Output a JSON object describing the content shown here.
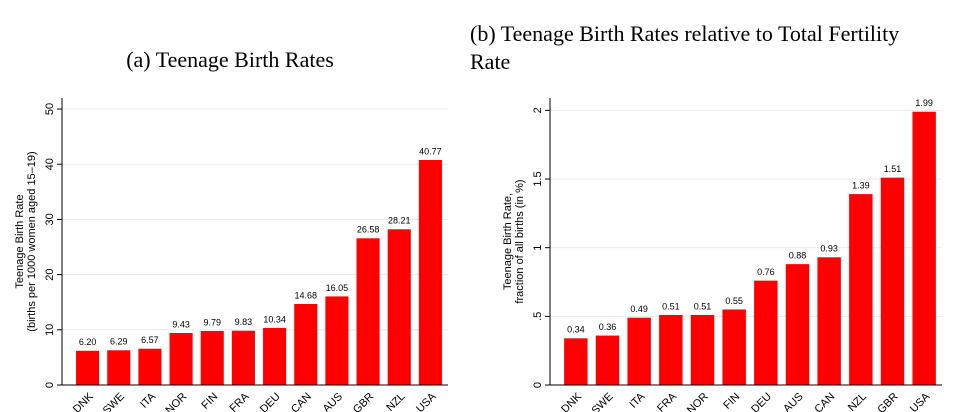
{
  "chart_data": [
    {
      "type": "bar",
      "title": "(a) Teenage Birth Rates",
      "ylabel": [
        "Teenage Birth Rate",
        "(births per 1000 women aged 15–19)"
      ],
      "categories": [
        "DNK",
        "SWE",
        "ITA",
        "NOR",
        "FIN",
        "FRA",
        "DEU",
        "CAN",
        "AUS",
        "GBR",
        "NZL",
        "USA"
      ],
      "values": [
        6.2,
        6.29,
        6.57,
        9.43,
        9.79,
        9.83,
        10.34,
        14.68,
        16.05,
        26.58,
        28.21,
        40.77
      ],
      "value_labels": [
        "6.20",
        "6.29",
        "6.57",
        "9.43",
        "9.79",
        "9.83",
        "10.34",
        "14.68",
        "16.05",
        "26.58",
        "28.21",
        "40.77"
      ],
      "color": "#ff0000",
      "ylim": [
        0,
        52
      ],
      "yticks": [
        0,
        10,
        20,
        30,
        40,
        50
      ],
      "grid": true
    },
    {
      "type": "bar",
      "title": "(b) Teenage Birth Rates relative to Total Fertility Rate",
      "ylabel": [
        "Teenage Birth Rate,",
        "fraction of all births (in %)"
      ],
      "categories": [
        "DNK",
        "SWE",
        "ITA",
        "FRA",
        "NOR",
        "FIN",
        "DEU",
        "AUS",
        "CAN",
        "NZL",
        "GBR",
        "USA"
      ],
      "values": [
        0.34,
        0.36,
        0.49,
        0.51,
        0.51,
        0.55,
        0.76,
        0.88,
        0.93,
        1.39,
        1.51,
        1.99
      ],
      "color": "#ff0000",
      "ylim": [
        0,
        2.09
      ],
      "yticks": [
        0,
        {
          "value": 0.5,
          "label": ".5"
        },
        1,
        1.5,
        2
      ],
      "grid": true
    }
  ]
}
